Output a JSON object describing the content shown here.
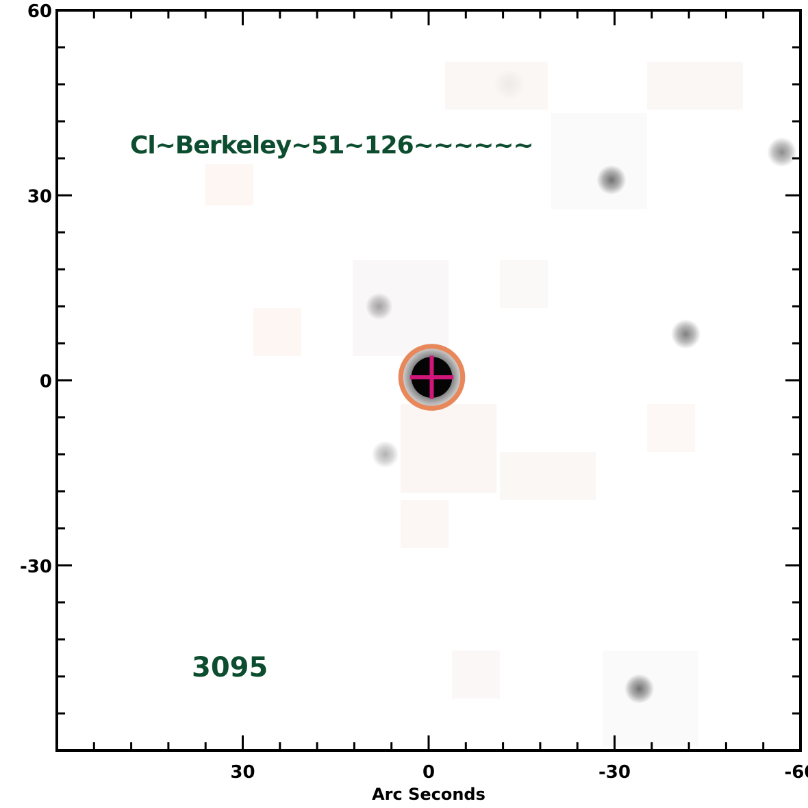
{
  "image": {
    "object_label": "Cl~Berkeley~51~126~~~~~~",
    "id_label": "3095",
    "x_axis_title": "Arc Seconds",
    "label_color": "#0d4d2f",
    "aperture_color": "#e8875a",
    "crosshair_color": "#d0167a"
  },
  "axes": {
    "x_range": [
      60,
      -60
    ],
    "y_range": [
      -60,
      60
    ],
    "x_ticks": [
      {
        "value": 30,
        "label": "30"
      },
      {
        "value": 0,
        "label": "0"
      },
      {
        "value": -30,
        "label": "-30"
      },
      {
        "value": -60,
        "label": "-60"
      }
    ],
    "y_ticks": [
      {
        "value": 60,
        "label": "60"
      },
      {
        "value": 30,
        "label": "30"
      },
      {
        "value": 0,
        "label": "0"
      },
      {
        "value": -30,
        "label": "-30"
      }
    ],
    "minor_step": 6
  },
  "sources": [
    {
      "x": -0.5,
      "y": 0.5,
      "strength": 1.0,
      "spread": 5.5
    },
    {
      "x": 8,
      "y": 12,
      "strength": 0.35,
      "spread": 2.2
    },
    {
      "x": 7,
      "y": -12,
      "strength": 0.3,
      "spread": 2.2
    },
    {
      "x": -29.5,
      "y": 32.5,
      "strength": 0.55,
      "spread": 2.4
    },
    {
      "x": -41.5,
      "y": 7.5,
      "strength": 0.5,
      "spread": 2.4
    },
    {
      "x": -57,
      "y": 37,
      "strength": 0.45,
      "spread": 2.4
    },
    {
      "x": -34,
      "y": -50,
      "strength": 0.55,
      "spread": 2.4
    },
    {
      "x": -13,
      "y": 48,
      "strength": 0.05,
      "spread": 2.5
    }
  ],
  "aperture": {
    "x": -0.5,
    "y": 0.5,
    "radius": 5
  },
  "crosshair": {
    "x": -0.5,
    "y": 0.5,
    "half_length": 3.5
  }
}
